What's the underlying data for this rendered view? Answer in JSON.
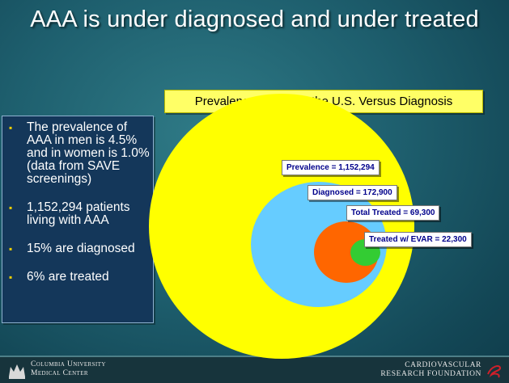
{
  "title": "AAA is under diagnosed and under treated",
  "diagram_title": "Prevalence of AAA in the U.S. Versus Diagnosis",
  "bullets": [
    "The prevalence of AAA in men is 4.5% and in women is 1.0% (data from SAVE screenings)",
    "1,152,294 patients living with AAA",
    "15% are diagnosed",
    "6% are treated"
  ],
  "circles": {
    "prevalence": {
      "label": "Prevalence  = 1,152,294",
      "value": 1152294,
      "color": "#ffff00"
    },
    "diagnosed": {
      "label": "Diagnosed = 172,900",
      "value": 172900,
      "color": "#66ccff"
    },
    "treated": {
      "label": "Total Treated = 69,300",
      "value": 69300,
      "color": "#ff6600"
    },
    "evar": {
      "label": "Treated w/ EVAR = 22,300",
      "value": 22300,
      "color": "#33cc33"
    }
  },
  "footer": {
    "left_line1": "Columbia University",
    "left_line2": "Medical Center",
    "right_line1": "CARDIOVASCULAR",
    "right_line2": "RESEARCH FOUNDATION"
  },
  "icons": {
    "left_logo": "crown-crest-icon",
    "right_logo": "crf-swoosh-icon"
  }
}
